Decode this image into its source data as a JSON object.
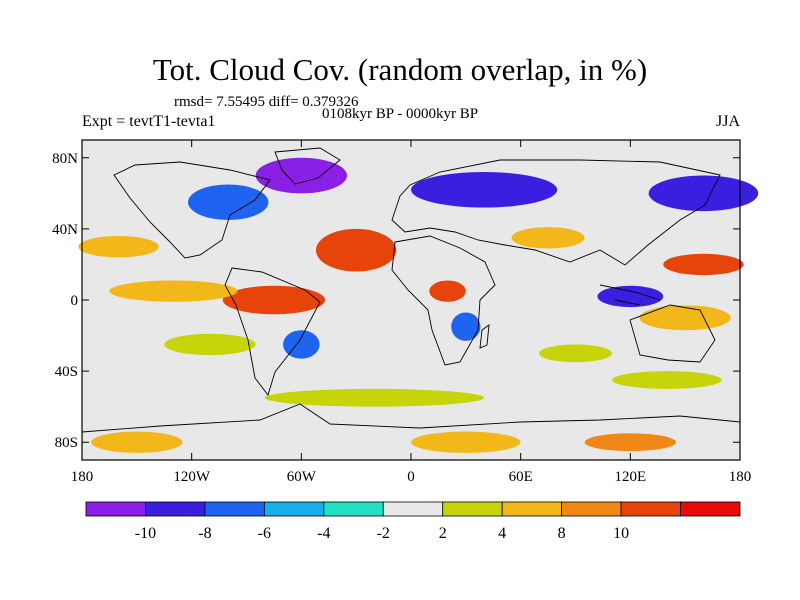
{
  "header": {
    "title": "Tot. Cloud Cov. (random overlap, in %)",
    "stats": "rmsd= 7.55495 diff= 0.379326",
    "period": "0108kyr BP - 0000kyr BP",
    "experiment": "Expt = tevtT1-tevta1",
    "season": "JJA"
  },
  "chart_data": {
    "type": "heatmap",
    "title": "Tot. Cloud Cov. (random overlap, in %)",
    "subtitle": "0108kyr BP - 0000kyr BP",
    "xlabel": "",
    "ylabel": "",
    "xlim": [
      -180,
      180
    ],
    "ylim": [
      -90,
      90
    ],
    "x_ticks": [
      {
        "value": -180,
        "label": "180"
      },
      {
        "value": -120,
        "label": "120W"
      },
      {
        "value": -60,
        "label": "60W"
      },
      {
        "value": 0,
        "label": "0"
      },
      {
        "value": 60,
        "label": "60E"
      },
      {
        "value": 120,
        "label": "120E"
      },
      {
        "value": 180,
        "label": "180"
      }
    ],
    "y_ticks": [
      {
        "value": 80,
        "label": "80N"
      },
      {
        "value": 40,
        "label": "40N"
      },
      {
        "value": 0,
        "label": "0"
      },
      {
        "value": -40,
        "label": "40S"
      },
      {
        "value": -80,
        "label": "80S"
      }
    ],
    "colorbar": {
      "boundaries": [
        -12,
        -10,
        -8,
        -6,
        -4,
        -2,
        2,
        4,
        8,
        10,
        12
      ],
      "labels": [
        {
          "value": -10,
          "label": "-10"
        },
        {
          "value": -8,
          "label": "-8"
        },
        {
          "value": -6,
          "label": "-6"
        },
        {
          "value": -4,
          "label": "-4"
        },
        {
          "value": -2,
          "label": "-2"
        },
        {
          "value": 2,
          "label": "2"
        },
        {
          "value": 4,
          "label": "4"
        },
        {
          "value": 8,
          "label": "8"
        },
        {
          "value": 10,
          "label": "10"
        }
      ],
      "colors": [
        "#8a1fe6",
        "#3a1fe0",
        "#1e64f0",
        "#18aeea",
        "#22e0c6",
        "#e8e8e8",
        "#c8d40a",
        "#f2b81a",
        "#f08818",
        "#e6440a",
        "#e60a0a"
      ]
    },
    "regions": [
      {
        "lon": -30,
        "lat": 28,
        "value": 11,
        "r_lon": 22,
        "r_lat": 12
      },
      {
        "lon": -75,
        "lat": 0,
        "value": 11,
        "r_lon": 28,
        "r_lat": 8
      },
      {
        "lon": -130,
        "lat": 5,
        "value": 8,
        "r_lon": 35,
        "r_lat": 6
      },
      {
        "lon": -160,
        "lat": 30,
        "value": 6,
        "r_lon": 22,
        "r_lat": 6
      },
      {
        "lon": 20,
        "lat": 5,
        "value": 11,
        "r_lon": 10,
        "r_lat": 6
      },
      {
        "lon": 160,
        "lat": 20,
        "value": 11,
        "r_lon": 22,
        "r_lat": 6
      },
      {
        "lon": 75,
        "lat": 35,
        "value": 8,
        "r_lon": 20,
        "r_lat": 6
      },
      {
        "lon": 150,
        "lat": -10,
        "value": 8,
        "r_lon": 25,
        "r_lat": 7
      },
      {
        "lon": 120,
        "lat": 2,
        "value": -8,
        "r_lon": 18,
        "r_lat": 6
      },
      {
        "lon": 160,
        "lat": 60,
        "value": -8,
        "r_lon": 30,
        "r_lat": 10
      },
      {
        "lon": -60,
        "lat": 70,
        "value": -10,
        "r_lon": 25,
        "r_lat": 10
      },
      {
        "lon": 40,
        "lat": 62,
        "value": -8,
        "r_lon": 40,
        "r_lat": 10
      },
      {
        "lon": -100,
        "lat": 55,
        "value": -6,
        "r_lon": 22,
        "r_lat": 10
      },
      {
        "lon": -60,
        "lat": -25,
        "value": -6,
        "r_lon": 10,
        "r_lat": 8
      },
      {
        "lon": 30,
        "lat": -15,
        "value": -6,
        "r_lon": 8,
        "r_lat": 8
      },
      {
        "lon": -150,
        "lat": -80,
        "value": 8,
        "r_lon": 25,
        "r_lat": 6
      },
      {
        "lon": 30,
        "lat": -80,
        "value": 8,
        "r_lon": 30,
        "r_lat": 6
      },
      {
        "lon": 120,
        "lat": -80,
        "value": 10,
        "r_lon": 25,
        "r_lat": 5
      },
      {
        "lon": -20,
        "lat": -55,
        "value": 4,
        "r_lon": 60,
        "r_lat": 5
      },
      {
        "lon": 140,
        "lat": -45,
        "value": 4,
        "r_lon": 30,
        "r_lat": 5
      },
      {
        "lon": -110,
        "lat": -25,
        "value": 4,
        "r_lon": 25,
        "r_lat": 6
      },
      {
        "lon": 90,
        "lat": -30,
        "value": 3,
        "r_lon": 20,
        "r_lat": 5
      }
    ]
  }
}
